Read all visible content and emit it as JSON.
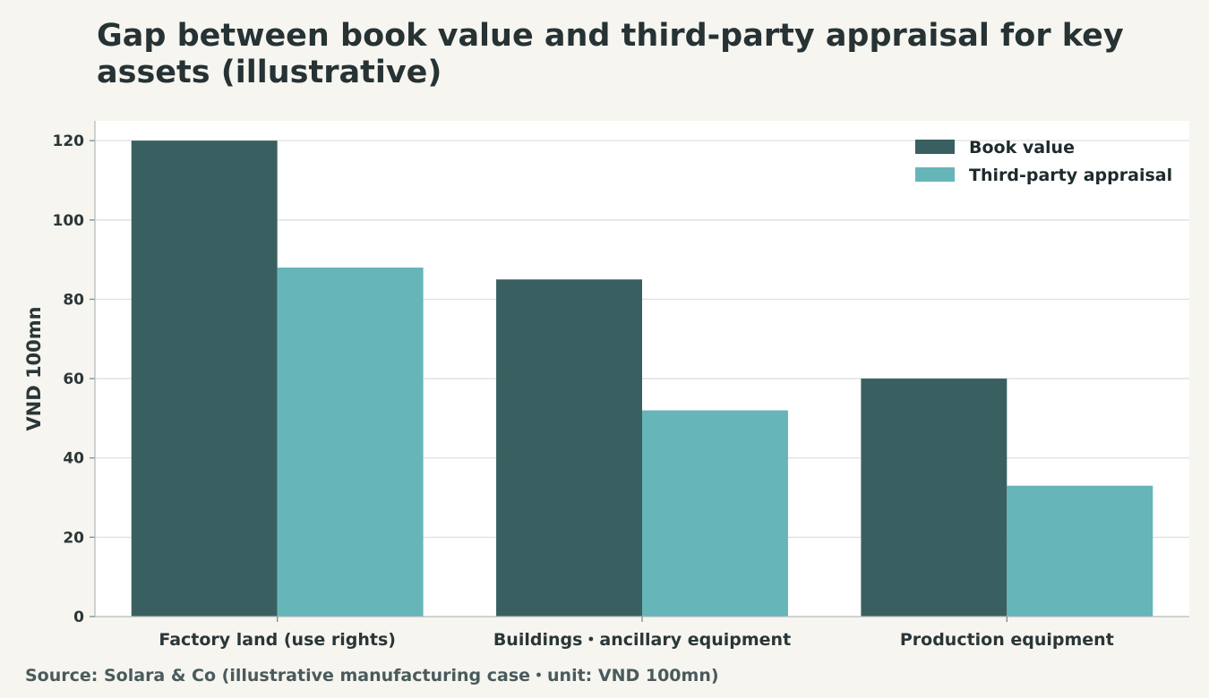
{
  "chart_data": {
    "type": "bar",
    "title": "Gap between book value and third-party appraisal for key assets (illustrative)",
    "ylabel": "VND 100mn",
    "xlabel": "",
    "ylim": [
      0,
      125
    ],
    "yticks": [
      0,
      20,
      40,
      60,
      80,
      100,
      120
    ],
    "grid": true,
    "legend_position": "top-right",
    "categories": [
      "Factory land (use rights)",
      "Buildings・ancillary equipment",
      "Production equipment"
    ],
    "series": [
      {
        "name": "Book value",
        "color": "#3a5f60",
        "values": [
          120,
          85,
          60
        ]
      },
      {
        "name": "Third-party appraisal",
        "color": "#66b5b9",
        "values": [
          88,
          52,
          33
        ]
      }
    ],
    "source": "Source: Solara & Co (illustrative manufacturing case・unit: VND 100mn)"
  }
}
